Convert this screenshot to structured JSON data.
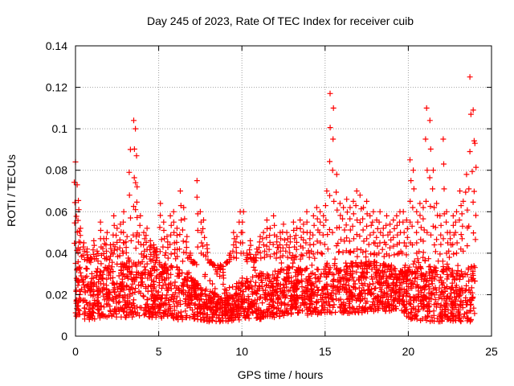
{
  "chart_data": {
    "type": "scatter",
    "title": "Day 245 of 2023, Rate Of TEC Index for receiver cuib",
    "xlabel": "GPS time / hours",
    "ylabel": "ROTI / TECUs",
    "xlim": [
      0,
      25
    ],
    "ylim": [
      0,
      0.14
    ],
    "xticks": [
      0,
      5,
      10,
      15,
      20,
      25
    ],
    "xtick_labels": [
      "0",
      "5",
      "10",
      "15",
      "20",
      "25"
    ],
    "yticks": [
      0,
      0.02,
      0.04,
      0.06,
      0.08,
      0.1,
      0.12,
      0.14
    ],
    "ytick_labels": [
      "0",
      "0.02",
      "0.04",
      "0.06",
      "0.08",
      "0.1",
      "0.12",
      "0.14"
    ],
    "grid": true,
    "marker": "+",
    "color": "#ff0000",
    "series": [
      {
        "x": [
          0.0,
          0.1,
          0.2,
          0.3,
          0.5,
          0.7,
          0.9,
          1.1,
          1.3,
          1.5,
          1.7,
          1.9,
          2.1,
          2.3,
          2.5,
          2.7,
          2.9,
          3.1,
          3.3,
          3.5,
          3.6,
          3.7,
          3.9,
          4.1,
          4.3,
          4.5,
          4.7,
          4.9,
          5.1,
          5.3,
          5.5,
          5.7,
          5.9,
          6.1,
          6.3,
          6.5,
          6.7,
          6.9,
          7.1,
          7.3,
          7.5,
          7.7,
          7.9,
          8.1,
          8.3,
          8.5,
          8.7,
          8.9,
          9.1,
          9.3,
          9.5,
          9.7,
          9.9,
          10.1,
          10.3,
          10.5,
          10.7,
          10.9,
          11.1,
          11.3,
          11.5,
          11.7,
          11.9,
          12.1,
          12.3,
          12.5,
          12.7,
          12.9,
          13.1,
          13.3,
          13.5,
          13.7,
          13.9,
          14.1,
          14.3,
          14.5,
          14.7,
          14.9,
          15.1,
          15.3,
          15.5,
          15.7,
          15.9,
          16.1,
          16.3,
          16.5,
          16.7,
          16.9,
          17.1,
          17.3,
          17.5,
          17.7,
          17.9,
          18.1,
          18.3,
          18.5,
          18.7,
          18.9,
          19.1,
          19.3,
          19.5,
          19.7,
          19.9,
          20.1,
          20.3,
          20.5,
          20.7,
          20.9,
          21.1,
          21.3,
          21.5,
          21.7,
          21.9,
          22.1,
          22.3,
          22.5,
          22.7,
          22.9,
          23.1,
          23.3,
          23.5,
          23.7,
          23.9,
          24.0
        ],
        "y": [
          0.084,
          0.073,
          0.061,
          0.052,
          0.045,
          0.042,
          0.038,
          0.046,
          0.041,
          0.055,
          0.047,
          0.05,
          0.044,
          0.058,
          0.052,
          0.054,
          0.06,
          0.048,
          0.09,
          0.104,
          0.1,
          0.072,
          0.058,
          0.05,
          0.052,
          0.046,
          0.044,
          0.042,
          0.064,
          0.055,
          0.048,
          0.058,
          0.06,
          0.052,
          0.07,
          0.062,
          0.048,
          0.04,
          0.036,
          0.075,
          0.06,
          0.056,
          0.044,
          0.036,
          0.034,
          0.03,
          0.032,
          0.028,
          0.036,
          0.04,
          0.05,
          0.048,
          0.06,
          0.06,
          0.04,
          0.046,
          0.038,
          0.042,
          0.048,
          0.05,
          0.056,
          0.052,
          0.058,
          0.048,
          0.05,
          0.054,
          0.05,
          0.048,
          0.055,
          0.052,
          0.056,
          0.054,
          0.06,
          0.05,
          0.058,
          0.062,
          0.06,
          0.058,
          0.07,
          0.117,
          0.11,
          0.078,
          0.064,
          0.062,
          0.066,
          0.062,
          0.065,
          0.07,
          0.068,
          0.062,
          0.065,
          0.058,
          0.06,
          0.056,
          0.06,
          0.052,
          0.058,
          0.054,
          0.056,
          0.058,
          0.06,
          0.06,
          0.056,
          0.085,
          0.08,
          0.06,
          0.064,
          0.062,
          0.11,
          0.104,
          0.08,
          0.064,
          0.058,
          0.095,
          0.06,
          0.05,
          0.058,
          0.06,
          0.07,
          0.065,
          0.078,
          0.125,
          0.109,
          0.093
        ]
      }
    ],
    "band": {
      "x": [
        0,
        1,
        2,
        3,
        4,
        5,
        6,
        7,
        7.5,
        8,
        8.5,
        9,
        9.5,
        10,
        11,
        12,
        13,
        14,
        15,
        16,
        17,
        18,
        19,
        19.5,
        20,
        21,
        22,
        23,
        24
      ],
      "low": [
        0.008,
        0.008,
        0.009,
        0.009,
        0.009,
        0.009,
        0.008,
        0.008,
        0.008,
        0.007,
        0.007,
        0.007,
        0.007,
        0.008,
        0.008,
        0.009,
        0.01,
        0.01,
        0.011,
        0.011,
        0.011,
        0.012,
        0.012,
        0.013,
        0.008,
        0.007,
        0.007,
        0.007,
        0.007
      ],
      "high": [
        0.034,
        0.032,
        0.034,
        0.036,
        0.036,
        0.036,
        0.034,
        0.03,
        0.024,
        0.022,
        0.022,
        0.022,
        0.024,
        0.028,
        0.03,
        0.032,
        0.034,
        0.034,
        0.036,
        0.036,
        0.036,
        0.036,
        0.034,
        0.032,
        0.034,
        0.034,
        0.034,
        0.032,
        0.034
      ],
      "count": 2400
    }
  }
}
